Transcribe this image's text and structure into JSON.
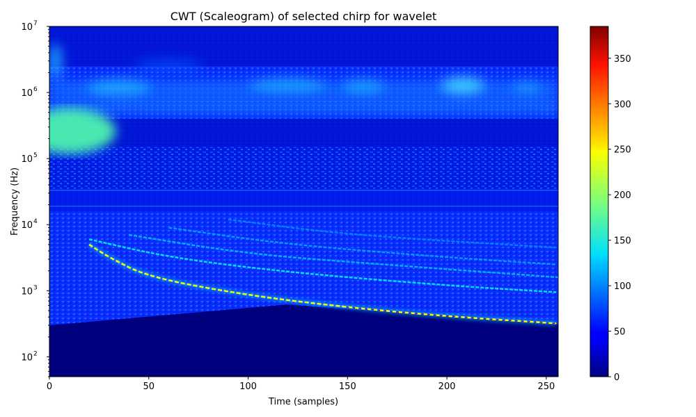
{
  "chart_data": {
    "type": "heatmap",
    "title": "CWT (Scaleogram) of selected chirp for wavelet",
    "xlabel": "Time (samples)",
    "ylabel": "Frequency (Hz)",
    "x_scale": "linear",
    "y_scale": "log",
    "xlim": [
      0,
      256
    ],
    "ylim": [
      50,
      10000000
    ],
    "x_ticks": [
      0,
      50,
      100,
      150,
      200,
      250
    ],
    "y_ticks": [
      {
        "value": 100,
        "base": "10",
        "exp": "2"
      },
      {
        "value": 1000,
        "base": "10",
        "exp": "3"
      },
      {
        "value": 10000,
        "base": "10",
        "exp": "4"
      },
      {
        "value": 100000,
        "base": "10",
        "exp": "5"
      },
      {
        "value": 1000000,
        "base": "10",
        "exp": "6"
      },
      {
        "value": 10000000,
        "base": "10",
        "exp": "7"
      }
    ],
    "colormap": "jet",
    "colorbar": {
      "vmin": 0,
      "vmax": 385,
      "ticks": [
        0,
        50,
        100,
        150,
        200,
        250,
        300,
        350
      ]
    },
    "features": {
      "main_chirp_ridge": {
        "points": [
          [
            20,
            5000
          ],
          [
            30,
            3200
          ],
          [
            50,
            1600
          ],
          [
            100,
            850
          ],
          [
            150,
            560
          ],
          [
            200,
            410
          ],
          [
            255,
            320
          ]
        ],
        "peak_value": 385
      },
      "harmonic_ridges": [
        {
          "points": [
            [
              20,
              6000
            ],
            [
              60,
              3200
            ],
            [
              120,
              1900
            ],
            [
              200,
              1200
            ],
            [
              255,
              950
            ]
          ],
          "level": 140
        },
        {
          "points": [
            [
              40,
              7000
            ],
            [
              100,
              3600
            ],
            [
              160,
              2600
            ],
            [
              255,
              1600
            ],
            [
              256,
              1600
            ]
          ],
          "level": 120
        },
        {
          "points": [
            [
              60,
              9000
            ],
            [
              120,
              5000
            ],
            [
              200,
              3200
            ],
            [
              255,
              2500
            ]
          ],
          "level": 110
        },
        {
          "points": [
            [
              90,
              12000
            ],
            [
              150,
              7000
            ],
            [
              255,
              4500
            ]
          ],
          "level": 100
        }
      ],
      "low_freq_cutoff": {
        "points": [
          [
            0,
            300
          ],
          [
            120,
            620
          ],
          [
            256,
            310
          ]
        ]
      },
      "high_freq_blob": {
        "time": [
          0,
          20
        ],
        "freq": [
          150000,
          500000
        ],
        "level": 175
      }
    }
  }
}
